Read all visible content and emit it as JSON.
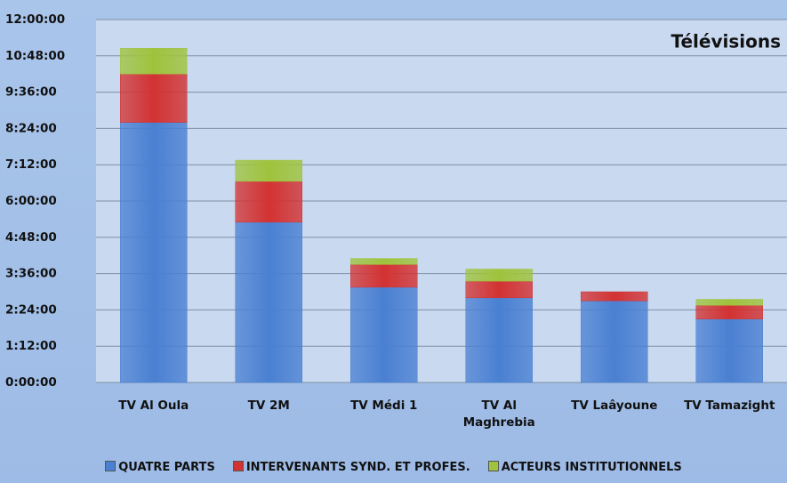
{
  "chart_data": {
    "type": "bar",
    "stacked": true,
    "title": "Télévisions",
    "categories": [
      "TV Al Oula",
      "TV 2M",
      "TV Médi 1",
      "TV Al Maghrebia",
      "TV Laâyoune",
      "TV Tamazight"
    ],
    "series": [
      {
        "name": "QUATRE PARTS",
        "color": "#4a80d2",
        "values": [
          8.6,
          5.3,
          3.15,
          2.8,
          2.7,
          2.1
        ]
      },
      {
        "name": "INTERVENANTS SYND. ET PROFES.",
        "color": "#d23232",
        "values": [
          1.6,
          1.35,
          0.75,
          0.55,
          0.3,
          0.45
        ]
      },
      {
        "name": "ACTEURS INSTITUTIONNELS",
        "color": "#9fc33c",
        "values": [
          0.85,
          0.7,
          0.2,
          0.4,
          0,
          0.2
        ]
      }
    ],
    "ylim": [
      0,
      12
    ],
    "yticks": [
      {
        "value": 0,
        "label": "0:00:00"
      },
      {
        "value": 1.2,
        "label": "1:12:00"
      },
      {
        "value": 2.4,
        "label": "2:24:00"
      },
      {
        "value": 3.6,
        "label": "3:36:00"
      },
      {
        "value": 4.8,
        "label": "4:48:00"
      },
      {
        "value": 6,
        "label": "6:00:00"
      },
      {
        "value": 7.2,
        "label": "7:12:00"
      },
      {
        "value": 8.4,
        "label": "8:24:00"
      },
      {
        "value": 9.6,
        "label": "9:36:00"
      },
      {
        "value": 10.8,
        "label": "10:48:00"
      },
      {
        "value": 12,
        "label": "12:00:00"
      }
    ],
    "grid": true,
    "legend": "bottom"
  }
}
